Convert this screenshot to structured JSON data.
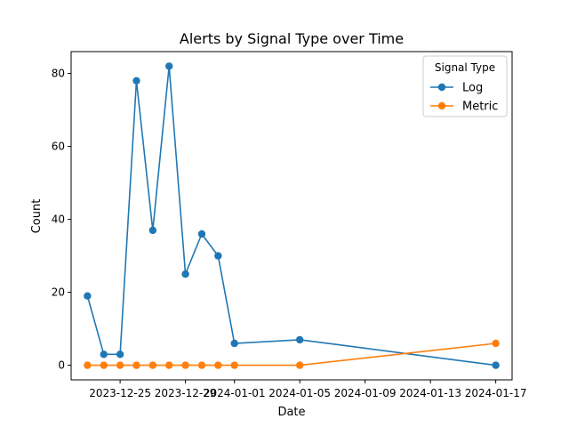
{
  "chart_data": {
    "type": "line",
    "title": "Alerts by Signal Type over Time",
    "xlabel": "Date",
    "ylabel": "Count",
    "x_type": "date",
    "xlim": [
      "2023-12-22",
      "2024-01-18"
    ],
    "ylim": [
      -4,
      86
    ],
    "x_ticks": [
      "2023-12-25",
      "2023-12-29",
      "2024-01-01",
      "2024-01-05",
      "2024-01-09",
      "2024-01-13",
      "2024-01-17"
    ],
    "y_ticks": [
      0,
      20,
      40,
      60,
      80
    ],
    "grid": false,
    "legend": {
      "title": "Signal Type",
      "placement": "top-right"
    },
    "series": [
      {
        "name": "Log",
        "color": "#1f77b4",
        "marker": "circle",
        "x": [
          "2023-12-23",
          "2023-12-24",
          "2023-12-25",
          "2023-12-26",
          "2023-12-27",
          "2023-12-28",
          "2023-12-29",
          "2023-12-30",
          "2023-12-31",
          "2024-01-01",
          "2024-01-05",
          "2024-01-17"
        ],
        "y": [
          19,
          3,
          3,
          78,
          37,
          82,
          25,
          36,
          30,
          6,
          7,
          0
        ]
      },
      {
        "name": "Metric",
        "color": "#ff7f0e",
        "marker": "circle",
        "x": [
          "2023-12-23",
          "2023-12-24",
          "2023-12-25",
          "2023-12-26",
          "2023-12-27",
          "2023-12-28",
          "2023-12-29",
          "2023-12-30",
          "2023-12-31",
          "2024-01-01",
          "2024-01-05",
          "2024-01-17"
        ],
        "y": [
          0,
          0,
          0,
          0,
          0,
          0,
          0,
          0,
          0,
          0,
          0,
          6
        ]
      }
    ]
  }
}
